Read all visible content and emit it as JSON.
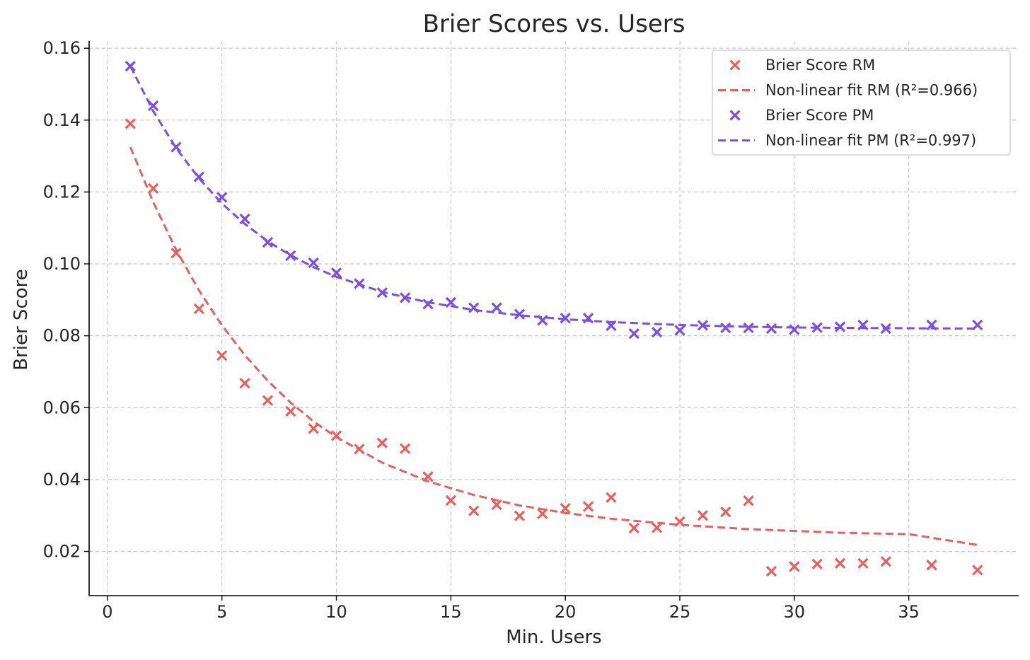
{
  "chart_data": {
    "type": "scatter",
    "title": "Brier Scores vs. Users",
    "xlabel": "Min. Users",
    "ylabel": "Brier Score",
    "xlim": [
      -0.8,
      39.8
    ],
    "ylim": [
      0.0077,
      0.162
    ],
    "xticks": [
      0,
      5,
      10,
      15,
      20,
      25,
      30,
      35
    ],
    "xtick_labels": [
      "0",
      "5",
      "10",
      "15",
      "20",
      "25",
      "30",
      "35"
    ],
    "yticks": [
      0.02,
      0.04,
      0.06,
      0.08,
      0.1,
      0.12,
      0.14,
      0.16
    ],
    "ytick_labels": [
      "0.02",
      "0.04",
      "0.06",
      "0.08",
      "0.10",
      "0.12",
      "0.14",
      "0.16"
    ],
    "grid": true,
    "legend_position": "top-right",
    "colors": {
      "RM": "#e8605c",
      "PM": "#7b4fe0"
    },
    "series": [
      {
        "name": "Brier Score RM",
        "kind": "scatter",
        "color": "#e8605c",
        "x": [
          1,
          2,
          3,
          4,
          5,
          6,
          7,
          8,
          9,
          10,
          11,
          12,
          13,
          14,
          15,
          16,
          17,
          18,
          19,
          20,
          21,
          22,
          23,
          24,
          25,
          26,
          27,
          28,
          29,
          30,
          31,
          32,
          33,
          34,
          36,
          38
        ],
        "y": [
          0.139,
          0.121,
          0.103,
          0.0875,
          0.0745,
          0.0668,
          0.062,
          0.059,
          0.0542,
          0.0522,
          0.0485,
          0.0502,
          0.0486,
          0.0408,
          0.0342,
          0.0313,
          0.033,
          0.0299,
          0.0305,
          0.032,
          0.0325,
          0.035,
          0.0265,
          0.0266,
          0.0283,
          0.03,
          0.031,
          0.0341,
          0.0145,
          0.0158,
          0.0165,
          0.0167,
          0.0167,
          0.0172,
          0.0162,
          0.0148
        ]
      },
      {
        "name": "Non-linear fit RM (R²=0.966)",
        "kind": "line",
        "color": "#e8605c",
        "x": [
          1,
          2,
          3,
          4,
          5,
          6,
          7,
          8,
          9,
          10,
          12,
          14,
          16,
          18,
          20,
          22,
          25,
          28,
          30,
          32,
          35,
          38
        ],
        "y": [
          0.1325,
          0.1172,
          0.1039,
          0.0926,
          0.0829,
          0.0746,
          0.0675,
          0.0614,
          0.0562,
          0.0518,
          0.0447,
          0.0395,
          0.0357,
          0.0328,
          0.0307,
          0.0291,
          0.0274,
          0.0262,
          0.0257,
          0.0252,
          0.0248,
          0.0218
        ]
      },
      {
        "name": "Brier Score PM",
        "kind": "scatter",
        "color": "#7b4fe0",
        "x": [
          1,
          2,
          3,
          4,
          5,
          6,
          7,
          8,
          9,
          10,
          11,
          12,
          13,
          14,
          15,
          16,
          17,
          18,
          19,
          20,
          21,
          22,
          23,
          24,
          25,
          26,
          27,
          28,
          29,
          30,
          31,
          32,
          33,
          34,
          36,
          38
        ],
        "y": [
          0.155,
          0.144,
          0.1325,
          0.1242,
          0.1185,
          0.1125,
          0.106,
          0.1023,
          0.1003,
          0.0975,
          0.0945,
          0.092,
          0.0906,
          0.0888,
          0.0893,
          0.0878,
          0.0878,
          0.086,
          0.0843,
          0.0849,
          0.0849,
          0.0828,
          0.0806,
          0.081,
          0.0815,
          0.0829,
          0.0822,
          0.0822,
          0.082,
          0.0817,
          0.0823,
          0.0825,
          0.083,
          0.082,
          0.083,
          0.083
        ]
      },
      {
        "name": "Non-linear fit PM (R²=0.997)",
        "kind": "line",
        "color": "#7b4fe0",
        "x": [
          1,
          2,
          3,
          4,
          5,
          6,
          7,
          8,
          9,
          10,
          12,
          14,
          16,
          18,
          20,
          22,
          25,
          28,
          30,
          32,
          35,
          38
        ],
        "y": [
          0.155,
          0.1425,
          0.1322,
          0.1238,
          0.1168,
          0.1111,
          0.1063,
          0.1024,
          0.0991,
          0.0964,
          0.0922,
          0.0893,
          0.0872,
          0.0857,
          0.0846,
          0.0838,
          0.083,
          0.0825,
          0.0823,
          0.0822,
          0.0821,
          0.082
        ]
      }
    ]
  }
}
